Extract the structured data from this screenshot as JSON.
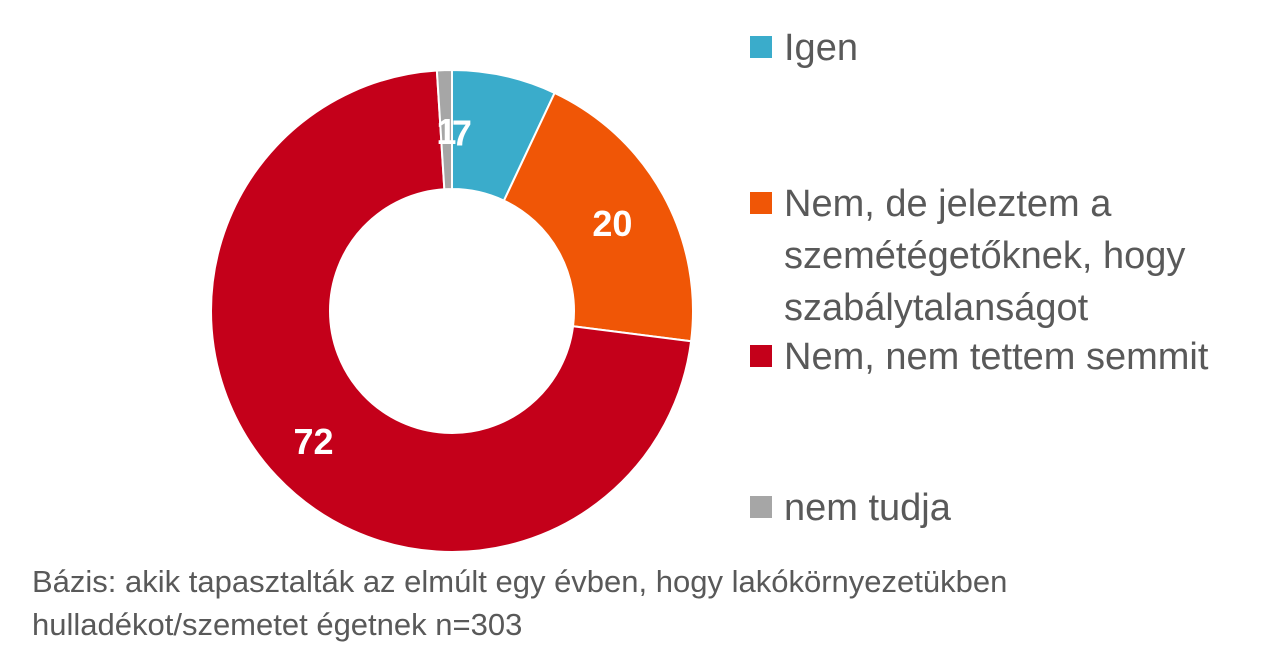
{
  "chart_data": {
    "type": "pie",
    "subtype": "donut",
    "categories": [
      "Igen",
      "Nem, de jeleztem a\nszemétégetőknek, hogy\nszabálytalanságot",
      "Nem, nem tettem semmit",
      "nem tudja"
    ],
    "values": [
      7,
      20,
      72,
      1
    ],
    "value_labels": [
      "7",
      "20",
      "72",
      "1"
    ],
    "colors": [
      "#3AACCB",
      "#F05606",
      "#C4001A",
      "#A6A6A6"
    ],
    "legend_position": "right"
  },
  "footnote": "Bázis: akik tapasztalták az elmúlt egy évben, hogy lakókörnyezetükben\nhulladékot/szemetet égetnek n=303"
}
